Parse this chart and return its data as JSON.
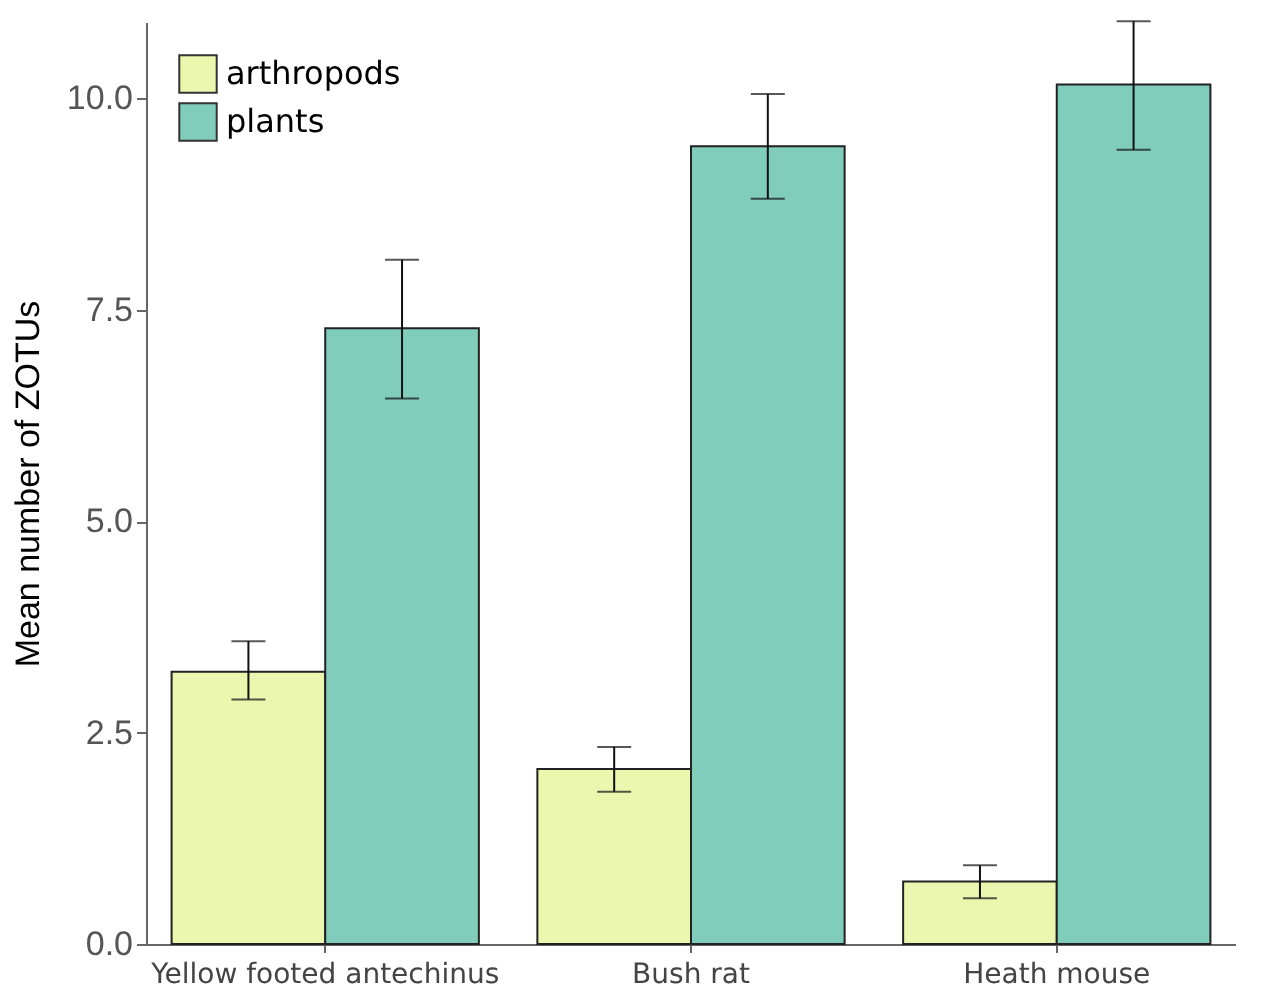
{
  "chart_data": {
    "type": "bar",
    "ylabel": "Mean number of ZOTUs",
    "categories": [
      "Yellow footed antechinus",
      "Bush rat",
      "Heath mouse"
    ],
    "series": [
      {
        "name": "arthropods",
        "color": "#ebf7af",
        "values": [
          3.22,
          2.07,
          0.74
        ],
        "errors": [
          [
            2.89,
            3.58
          ],
          [
            1.8,
            2.33
          ],
          [
            0.54,
            0.93
          ]
        ]
      },
      {
        "name": "plants",
        "color": "#80cdbb",
        "values": [
          7.28,
          9.43,
          10.16
        ],
        "errors": [
          [
            6.45,
            8.09
          ],
          [
            8.81,
            10.05
          ],
          [
            9.39,
            10.91
          ]
        ]
      }
    ],
    "ylim": [
      0,
      10.9
    ],
    "yticks": [
      {
        "value": 0,
        "label": "0.0"
      },
      {
        "value": 2.5,
        "label": "2.5"
      },
      {
        "value": 5,
        "label": "5.0"
      },
      {
        "value": 7.5,
        "label": "7.5"
      },
      {
        "value": 10,
        "label": "10.0"
      }
    ],
    "grid": false,
    "legend": "top left"
  }
}
